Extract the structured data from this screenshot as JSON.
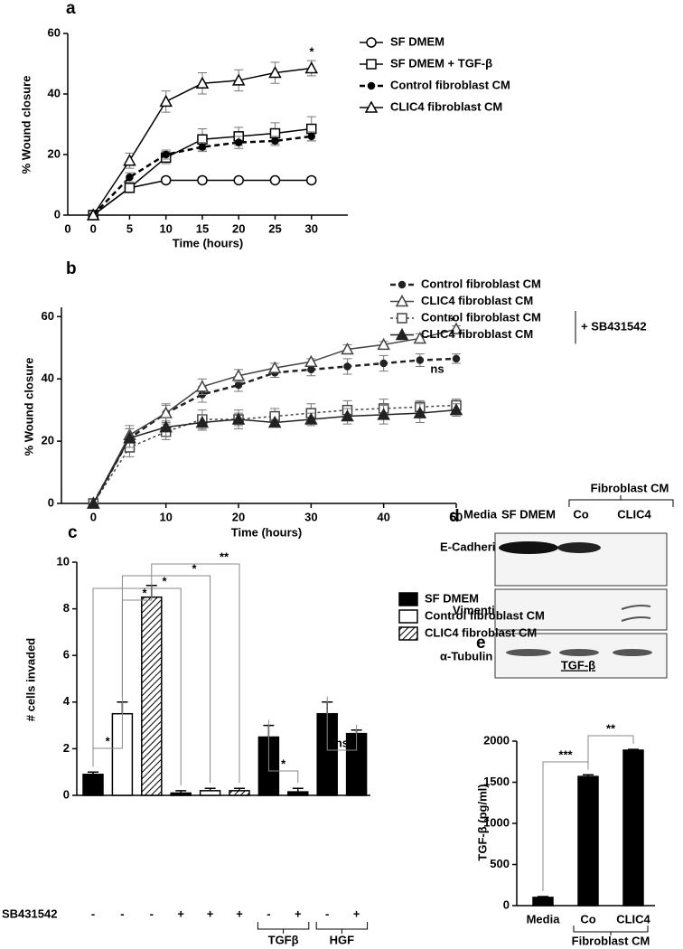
{
  "chart_data": [
    {
      "panel": "a",
      "type": "line",
      "x_label": "Time (hours)",
      "y_label": "% Wound closure",
      "x_origin_label": "0",
      "x": [
        0,
        5,
        10,
        15,
        20,
        25,
        30
      ],
      "xlim": [
        -3.5,
        35
      ],
      "xticks": [
        0,
        5,
        10,
        15,
        20,
        25,
        30
      ],
      "ylim": [
        0,
        60
      ],
      "yticks": [
        0,
        20,
        40,
        60
      ],
      "series": [
        {
          "name": "SF DMEM",
          "color": "#000000",
          "marker": "circle-open",
          "line": "solid",
          "values": [
            0,
            9,
            11.5,
            11.5,
            11.5,
            11.5,
            11.5
          ],
          "errors": [
            0,
            1.5,
            1,
            1,
            0.5,
            0.5,
            1
          ]
        },
        {
          "name": "SF DMEM + TGF-β",
          "color": "#000000",
          "marker": "square-open",
          "line": "solid",
          "values": [
            0,
            9,
            19,
            25,
            26,
            27,
            28.5
          ],
          "errors": [
            0,
            1.5,
            2,
            3.5,
            3,
            3.5,
            4
          ]
        },
        {
          "name": "Control fibroblast CM",
          "color": "#000000",
          "marker": "circle-filled",
          "line": "dashed",
          "values": [
            0,
            12.5,
            20,
            22.5,
            24,
            24.5,
            26
          ],
          "errors": [
            0,
            1.5,
            1.5,
            1.5,
            2,
            1.5,
            1.5
          ]
        },
        {
          "name": "CLIC4 fibroblast CM",
          "color": "#000000",
          "marker": "triangle-open",
          "line": "solid",
          "values": [
            0,
            18,
            37.5,
            43.5,
            44.5,
            47,
            48.5
          ],
          "errors": [
            0,
            2.5,
            3.5,
            3.5,
            3.5,
            3.5,
            2.5
          ]
        }
      ],
      "annotations": [
        "*"
      ]
    },
    {
      "panel": "b",
      "type": "line",
      "x_label": "Time (hours)",
      "y_label": "% Wound closure",
      "x": [
        0,
        5,
        10,
        15,
        20,
        25,
        30,
        35,
        40,
        45,
        50
      ],
      "xlim": [
        -4.4,
        50
      ],
      "xticks": [
        0,
        10,
        20,
        30,
        40,
        50
      ],
      "ylim": [
        0,
        63
      ],
      "yticks": [
        0,
        20,
        40,
        60
      ],
      "legend_group_label": "+ SB431542",
      "series": [
        {
          "name": "Control fibroblast CM",
          "color": "#222222",
          "marker": "circle-filled",
          "line": "dashed",
          "values": [
            0,
            21,
            29,
            35,
            38,
            42,
            43,
            44,
            45,
            46,
            46.5
          ],
          "errors": [
            0,
            3,
            2.5,
            2.5,
            2,
            1.5,
            2,
            2.5,
            2.5,
            2,
            1.5
          ]
        },
        {
          "name": "CLIC4 fibroblast CM",
          "color": "#444444",
          "marker": "triangle-open",
          "line": "solid",
          "values": [
            0,
            22,
            29,
            37.5,
            41,
            43.5,
            45.5,
            49.5,
            51,
            53,
            56
          ],
          "errors": [
            0,
            3,
            3,
            2.5,
            2,
            1.5,
            1,
            1.5,
            1,
            1.5,
            1
          ]
        },
        {
          "name": "Control fibroblast CM",
          "color": "#444444",
          "marker": "square-open",
          "line": "dotted",
          "values": [
            0,
            18,
            23,
            27,
            27,
            28,
            29,
            30,
            30.5,
            31,
            31.5
          ],
          "errors": [
            0,
            3,
            2.5,
            3,
            3,
            2.5,
            3,
            3,
            3,
            2,
            2
          ]
        },
        {
          "name": "CLIC4 fibroblast CM",
          "color": "#222222",
          "marker": "triangle-filled",
          "line": "solid",
          "values": [
            0,
            21,
            24.5,
            26,
            27,
            26,
            27,
            28,
            28.5,
            29,
            30
          ],
          "errors": [
            0,
            3,
            3,
            2.5,
            2,
            1,
            2,
            2.5,
            3,
            3,
            2
          ]
        }
      ],
      "annotations": [
        "*",
        "ns"
      ]
    },
    {
      "panel": "c",
      "type": "bar",
      "y_label": "# cells invaded",
      "categories": [
        null,
        null,
        null,
        null,
        null,
        null,
        null,
        null,
        null,
        null
      ],
      "ylim": [
        0,
        10
      ],
      "yticks": [
        0,
        2,
        4,
        6,
        8,
        10
      ],
      "series": [
        {
          "name": "SF DMEM",
          "color": "#000000",
          "values": [
            0.9,
            null,
            null,
            0.1,
            null,
            null,
            2.5,
            0.15,
            3.5,
            2.65
          ],
          "errors": [
            0.1,
            null,
            null,
            0.1,
            null,
            null,
            0.5,
            0.15,
            0.5,
            0.15
          ]
        },
        {
          "name": "Control fibroblast CM",
          "color": "#ffffff",
          "values": [
            null,
            3.5,
            null,
            null,
            0.2,
            null,
            null,
            null,
            null,
            null
          ],
          "errors": [
            null,
            0.5,
            null,
            null,
            0.1,
            null,
            null,
            null,
            null,
            null
          ]
        },
        {
          "name": "CLIC4 fibroblast CM",
          "color": "#000000",
          "pattern": "hatch",
          "values": [
            null,
            null,
            8.5,
            null,
            null,
            0.2,
            null,
            null,
            null,
            null
          ],
          "errors": [
            null,
            null,
            0.5,
            null,
            null,
            0.1,
            null,
            null,
            null,
            null
          ]
        }
      ],
      "row_label": "SB431542",
      "row_values": [
        "-",
        "-",
        "-",
        "+",
        "+",
        "+",
        "-",
        "+",
        "-",
        "+"
      ],
      "groups": [
        "TGFβ",
        "HGF"
      ],
      "annotations": [
        "*",
        "*",
        "*",
        "*",
        "**",
        "*",
        "ns"
      ]
    },
    {
      "panel": "e",
      "type": "bar",
      "title": "TGF-β",
      "y_label": "TGF-β (pg/ml)",
      "categories": [
        "Media",
        "Co",
        "CLIC4"
      ],
      "values": [
        100,
        1570,
        1890
      ],
      "errors": [
        10,
        20,
        10
      ],
      "color": "#000000",
      "ylim": [
        0,
        2000
      ],
      "yticks": [
        0,
        500,
        1000,
        1500,
        2000
      ],
      "group_label": "Fibroblast CM",
      "annotations": [
        "***",
        "**"
      ]
    }
  ],
  "blot": {
    "panel": "d",
    "media_label": "Media",
    "group_label": "Fibroblast CM",
    "lanes": [
      "SF DMEM",
      "Co",
      "CLIC4"
    ],
    "rows": [
      "E-Cadherin",
      "Vimentin",
      "α-Tubulin"
    ]
  }
}
